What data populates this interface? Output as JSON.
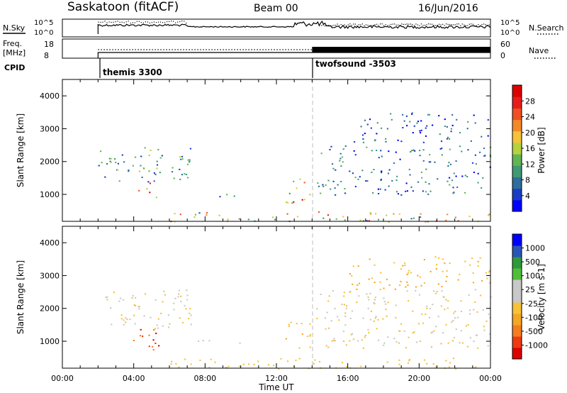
{
  "header": {
    "station": "Saskatoon (fitACF)",
    "beam": "Beam 00",
    "date": "16/Jun/2016"
  },
  "noise_panel": {
    "left_label": "N.Sky",
    "right_label": "N.Search",
    "left_ticks": [
      "10^5",
      "10^0"
    ],
    "right_ticks": [
      "10^5",
      "10^0"
    ]
  },
  "freq_panel": {
    "left_label_top": "Freq.",
    "left_label_bottom": "[MHz]",
    "right_label": "Nave",
    "left_ticks": [
      "18",
      "8"
    ],
    "right_ticks": [
      "60",
      "0"
    ]
  },
  "cpid_panel": {
    "label": "CPID",
    "programs": [
      {
        "name": "themis 3300",
        "start_hour": 2.0
      },
      {
        "name": "twofsound -3503",
        "start_hour": 14.0
      }
    ]
  },
  "colors": {
    "power_scale": [
      "#0000ff",
      "#1a3cc8",
      "#2f6d9c",
      "#3e9a74",
      "#62b552",
      "#b5d23f",
      "#f7c238",
      "#f4892a",
      "#ef5022",
      "#e81c1c",
      "#dd0000"
    ],
    "velocity_scale": [
      "#dd0000",
      "#ee3a10",
      "#f57d1d",
      "#f5a623",
      "#f7c238",
      "#c8c8c8",
      "#c8c8c8",
      "#4fbf3a",
      "#2e9a3a",
      "#2a55b8",
      "#0000ff"
    ],
    "ground_scatter": "#c0c0c0"
  },
  "chart_data": [
    {
      "type": "heatmap",
      "name": "power",
      "ylabel": "Slant Range [km]",
      "xlabel": "Time UT",
      "xlim": [
        0,
        24
      ],
      "ylim": [
        180,
        4500
      ],
      "xticks": [
        "00:00",
        "04:00",
        "08:00",
        "12:00",
        "16:00",
        "20:00",
        "00:00"
      ],
      "yticks": [
        1000,
        2000,
        3000,
        4000
      ],
      "colorbar": {
        "label": "Power [dB]",
        "ticks": [
          "4",
          "8",
          "12",
          "16",
          "20",
          "24",
          "28"
        ],
        "range": [
          0,
          30
        ]
      },
      "regions": [
        {
          "t": [
            2.0,
            7.2
          ],
          "r": [
            1400,
            2450
          ],
          "value": 10
        },
        {
          "t": [
            3.8,
            5.6
          ],
          "r": [
            750,
            1400
          ],
          "value": 26
        },
        {
          "t": [
            7.5,
            10.0
          ],
          "r": [
            950,
            1050
          ],
          "value": 8
        },
        {
          "t": [
            12.5,
            13.9
          ],
          "r": [
            700,
            1500
          ],
          "value": 22
        },
        {
          "t": [
            14.2,
            24.0
          ],
          "r": [
            1000,
            2500
          ],
          "value": 8
        },
        {
          "t": [
            16.0,
            24.0
          ],
          "r": [
            2600,
            3500
          ],
          "value": 6
        },
        {
          "t": [
            6.0,
            24.0
          ],
          "r": [
            180,
            500
          ],
          "value": 18
        }
      ]
    },
    {
      "type": "heatmap",
      "name": "velocity",
      "ylabel": "Slant Range [km]",
      "xlabel": "Time UT",
      "xlim": [
        0,
        24
      ],
      "ylim": [
        180,
        4500
      ],
      "xticks": [
        "00:00",
        "04:00",
        "08:00",
        "12:00",
        "16:00",
        "20:00",
        "00:00"
      ],
      "yticks": [
        1000,
        2000,
        3000,
        4000
      ],
      "colorbar": {
        "label": "Velocity [m s-1]",
        "ticks": [
          "1000",
          "500",
          "100",
          "25",
          "-25",
          "-100",
          "-500",
          "-1000"
        ],
        "range": [
          -1000,
          1000
        ]
      },
      "regions": [
        {
          "t": [
            2.0,
            7.2
          ],
          "r": [
            1400,
            2600
          ],
          "value": 0
        },
        {
          "t": [
            3.8,
            5.6
          ],
          "r": [
            750,
            1400
          ],
          "value": -700
        },
        {
          "t": [
            7.5,
            10.0
          ],
          "r": [
            950,
            1050
          ],
          "value": 150
        },
        {
          "t": [
            12.5,
            13.9
          ],
          "r": [
            700,
            1600
          ],
          "value": -150
        },
        {
          "t": [
            14.2,
            24.0
          ],
          "r": [
            800,
            2600
          ],
          "value": 0
        },
        {
          "t": [
            16.0,
            24.0
          ],
          "r": [
            2600,
            3600
          ],
          "value": -200
        },
        {
          "t": [
            6.0,
            24.0
          ],
          "r": [
            180,
            500
          ],
          "value": -80
        }
      ]
    }
  ],
  "x_axis": {
    "label": "Time UT",
    "ticks": [
      "00:00",
      "04:00",
      "08:00",
      "12:00",
      "16:00",
      "20:00",
      "00:00"
    ]
  }
}
